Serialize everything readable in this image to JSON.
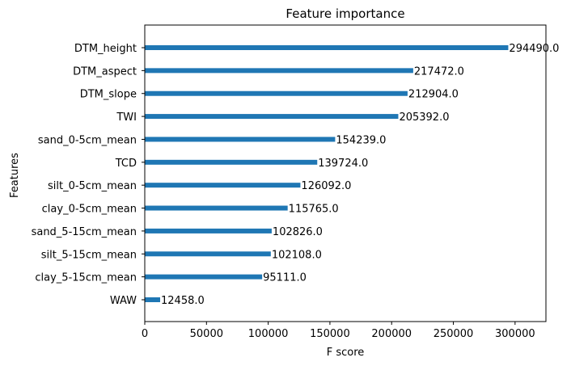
{
  "chart_data": {
    "type": "bar",
    "orientation": "horizontal",
    "title": "Feature importance",
    "xlabel": "F score",
    "ylabel": "Features",
    "categories": [
      "DTM_height",
      "DTM_aspect",
      "DTM_slope",
      "TWI",
      "sand_0-5cm_mean",
      "TCD",
      "silt_0-5cm_mean",
      "clay_0-5cm_mean",
      "sand_5-15cm_mean",
      "silt_5-15cm_mean",
      "clay_5-15cm_mean",
      "WAW"
    ],
    "values": [
      294490.0,
      217472.0,
      212904.0,
      205392.0,
      154239.0,
      139724.0,
      126092.0,
      115765.0,
      102826.0,
      102108.0,
      95111.0,
      12458.0
    ],
    "value_labels": [
      "294490.0",
      "217472.0",
      "212904.0",
      "205392.0",
      "154239.0",
      "139724.0",
      "126092.0",
      "115765.0",
      "102826.0",
      "102108.0",
      "95111.0",
      "12458.0"
    ],
    "xlim": [
      0,
      325000
    ],
    "xticks": [
      0,
      50000,
      100000,
      150000,
      200000,
      250000,
      300000
    ],
    "xtick_labels": [
      "0",
      "50000",
      "100000",
      "150000",
      "200000",
      "250000",
      "300000"
    ],
    "grid": false,
    "bar_color": "#1f77b4"
  }
}
